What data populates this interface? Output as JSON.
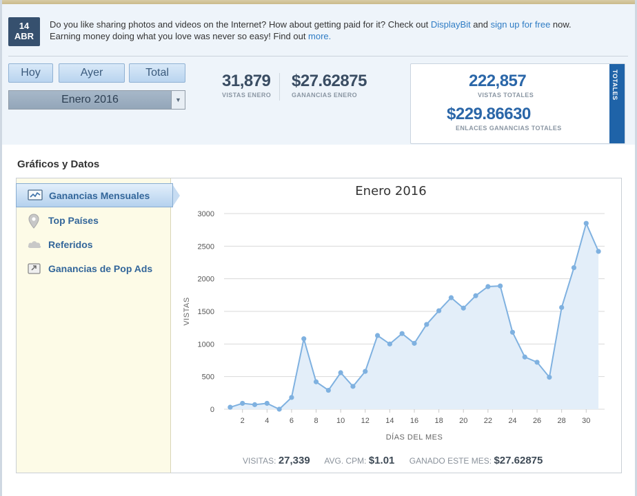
{
  "notice": {
    "date_day": "14",
    "date_month": "ABR",
    "text_1": "Do you like sharing photos and videos on the Internet? How about getting paid for it? Check out ",
    "link_1": "DisplayBit",
    "text_2": " and ",
    "link_2": "sign up for free",
    "text_3": " now.",
    "text_4": "Earning money doing what you love was never so easy! Find out ",
    "link_3": "more."
  },
  "period_buttons": {
    "today": "Hoy",
    "yesterday": "Ayer",
    "total": "Total"
  },
  "month_select": {
    "value": "Enero 2016",
    "arrow": "▼"
  },
  "month_stats": {
    "views": "31,879",
    "views_label": "VISTAS ENERO",
    "earnings": "$27.62875",
    "earnings_label": "GANANCIAS ENERO"
  },
  "totals": {
    "tab_label": "TOTALES",
    "views": "222,857",
    "views_label": "VISTAS TOTALES",
    "earnings": "$229.86630",
    "earnings_label": "ENLACES GANANCIAS TOTALES"
  },
  "section_title": "Gráficos y Datos",
  "sidebar": {
    "items": [
      {
        "label": "Ganancias Mensuales",
        "icon": "line-chart-icon",
        "active": true
      },
      {
        "label": "Top Países",
        "icon": "map-pin-icon",
        "active": false
      },
      {
        "label": "Referidos",
        "icon": "cloud-icon",
        "active": false
      },
      {
        "label": "Ganancias de Pop Ads",
        "icon": "popup-icon",
        "active": false
      }
    ]
  },
  "chart_data": {
    "type": "area",
    "title": "Enero 2016",
    "xlabel": "DÍAS DEL MES",
    "ylabel": "VISTAS",
    "x": [
      1,
      2,
      3,
      4,
      5,
      6,
      7,
      8,
      9,
      10,
      11,
      12,
      13,
      14,
      15,
      16,
      17,
      18,
      19,
      20,
      21,
      22,
      23,
      24,
      25,
      26,
      27,
      28,
      29,
      30,
      31
    ],
    "values": [
      30,
      90,
      70,
      90,
      0,
      180,
      1080,
      420,
      290,
      560,
      350,
      580,
      1130,
      1000,
      1160,
      1010,
      1300,
      1510,
      1710,
      1550,
      1740,
      1880,
      1890,
      1180,
      800,
      720,
      490,
      1560,
      2170,
      2850,
      2420
    ],
    "xticks": [
      2,
      4,
      6,
      8,
      10,
      12,
      14,
      16,
      18,
      20,
      22,
      24,
      26,
      28,
      30
    ],
    "yticks": [
      0,
      500,
      1000,
      1500,
      2000,
      2500,
      3000
    ],
    "ylim": [
      0,
      3000
    ],
    "xlim": [
      0.5,
      31.5
    ],
    "grid": true,
    "line_color": "#7fb1e0",
    "fill_color": "#e3eef9"
  },
  "summary": {
    "visits_label": "VISITAS:",
    "visits": "27,339",
    "cpm_label": "AVG. CPM:",
    "cpm": "$1.01",
    "earned_label": "GANADO ESTE MES:",
    "earned": "$27.62875"
  }
}
